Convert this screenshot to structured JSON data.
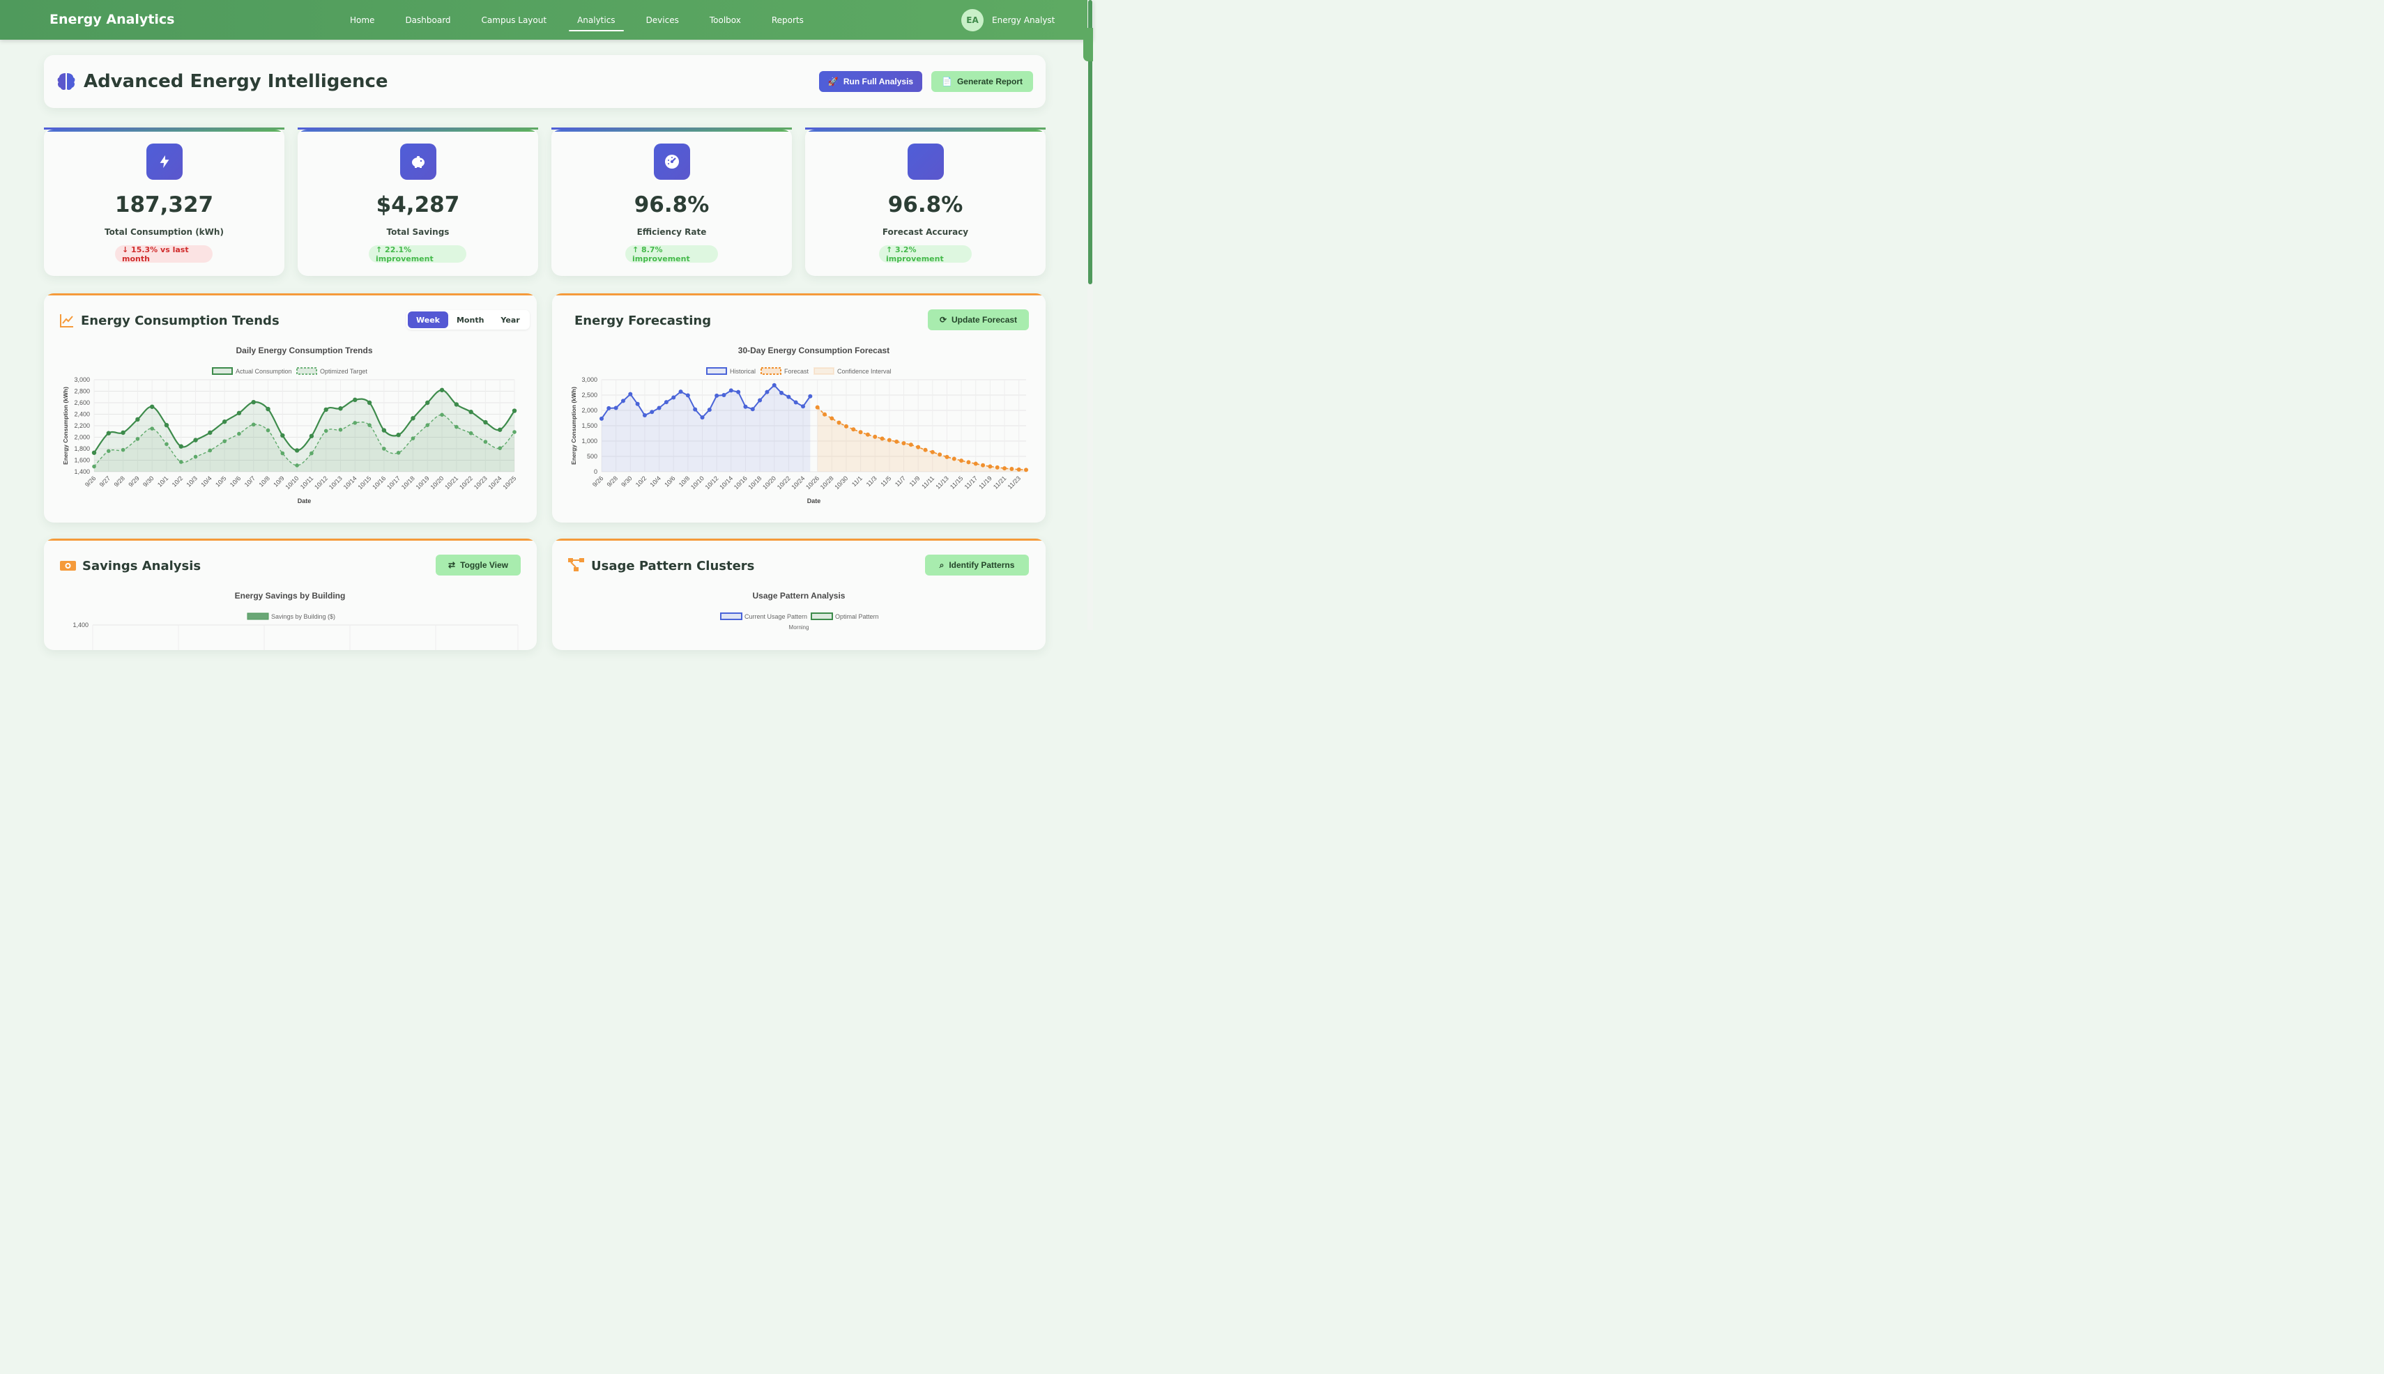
{
  "nav": {
    "brand": "Energy Analytics",
    "links": [
      "Home",
      "Dashboard",
      "Campus Layout",
      "Analytics",
      "Devices",
      "Toolbox",
      "Reports"
    ],
    "active": "Analytics",
    "user_initials": "EA",
    "user_name": "Energy Analyst"
  },
  "header": {
    "title": "Advanced Energy Intelligence",
    "run_label": "Run Full Analysis",
    "report_label": "Generate Report"
  },
  "stats": [
    {
      "icon": "bolt-icon",
      "value": "187,327",
      "label": "Total Consumption (kWh)",
      "badge": "↓ 15.3% vs last month",
      "trend": "down"
    },
    {
      "icon": "piggy-bank-icon",
      "value": "$4,287",
      "label": "Total Savings",
      "badge": "↑ 22.1% improvement",
      "trend": "up"
    },
    {
      "icon": "gauge-icon",
      "value": "96.8%",
      "label": "Efficiency Rate",
      "badge": "↑ 8.7% improvement",
      "trend": "up"
    },
    {
      "icon": "",
      "value": "96.8%",
      "label": "Forecast Accuracy",
      "badge": "↑ 3.2% improvement",
      "trend": "up"
    }
  ],
  "trends_card": {
    "title": "Energy Consumption Trends",
    "toggle": [
      "Week",
      "Month",
      "Year"
    ],
    "toggle_active": "Week"
  },
  "forecast_card": {
    "title": "Energy Forecasting",
    "button_label": "Update Forecast"
  },
  "savings_card": {
    "title": "Savings Analysis",
    "button_label": "Toggle View"
  },
  "patterns_card": {
    "title": "Usage Pattern Clusters",
    "button_label": "Identify Patterns"
  },
  "colors": {
    "nav": "#4f9a5c",
    "primary": "#4f5ed8",
    "accent_orange": "#f59a3a",
    "green_line": "#3d8b4b",
    "blue_line": "#4a64d8",
    "forecast_orange": "#f0902e"
  },
  "chart_data": [
    {
      "type": "line",
      "title": "Daily Energy Consumption Trends",
      "xlabel": "Date",
      "ylabel": "Energy Consumption (kWh)",
      "ylim": [
        1400,
        3000
      ],
      "yticks": [
        1400,
        1600,
        1800,
        2000,
        2200,
        2400,
        2600,
        2800,
        3000
      ],
      "grid": true,
      "legend": "top",
      "x": [
        "9/26",
        "9/27",
        "9/28",
        "9/29",
        "9/30",
        "10/1",
        "10/2",
        "10/3",
        "10/4",
        "10/5",
        "10/6",
        "10/7",
        "10/8",
        "10/9",
        "10/10",
        "10/11",
        "10/12",
        "10/13",
        "10/14",
        "10/15",
        "10/16",
        "10/17",
        "10/18",
        "10/19",
        "10/20",
        "10/21",
        "10/22",
        "10/23",
        "10/24",
        "10/25"
      ],
      "series": [
        {
          "name": "Actual Consumption",
          "values": [
            1730,
            2070,
            2080,
            2310,
            2530,
            2210,
            1840,
            1950,
            2080,
            2270,
            2420,
            2610,
            2490,
            2030,
            1770,
            2020,
            2480,
            2500,
            2650,
            2600,
            2120,
            2040,
            2330,
            2600,
            2820,
            2570,
            2440,
            2260,
            2130,
            2460
          ],
          "style": "solid"
        },
        {
          "name": "Optimized Target",
          "values": [
            1490,
            1760,
            1780,
            1970,
            2150,
            1880,
            1570,
            1660,
            1770,
            1930,
            2060,
            2220,
            2120,
            1720,
            1510,
            1720,
            2110,
            2130,
            2250,
            2210,
            1800,
            1730,
            1980,
            2210,
            2390,
            2180,
            2070,
            1920,
            1810,
            2090
          ],
          "style": "dashed"
        }
      ]
    },
    {
      "type": "line",
      "title": "30-Day Energy Consumption Forecast",
      "xlabel": "Date",
      "ylabel": "Energy Consumption (kWh)",
      "ylim": [
        0,
        3000
      ],
      "yticks": [
        0,
        500,
        1000,
        1500,
        2000,
        2500,
        3000
      ],
      "grid": true,
      "legend": "top",
      "x_ticks": [
        "9/26",
        "9/28",
        "9/30",
        "10/2",
        "10/4",
        "10/6",
        "10/8",
        "10/10",
        "10/12",
        "10/14",
        "10/16",
        "10/18",
        "10/20",
        "10/22",
        "10/24",
        "10/26",
        "10/28",
        "10/30",
        "11/1",
        "11/3",
        "11/5",
        "11/7",
        "11/9",
        "11/11",
        "11/13",
        "11/15",
        "11/17",
        "11/19",
        "11/21",
        "11/23"
      ],
      "series": [
        {
          "name": "Historical",
          "start_day": 0,
          "values": [
            1730,
            2070,
            2080,
            2310,
            2530,
            2210,
            1840,
            1950,
            2080,
            2270,
            2420,
            2610,
            2490,
            2030,
            1770,
            2020,
            2480,
            2500,
            2650,
            2600,
            2120,
            2040,
            2330,
            2600,
            2820,
            2570,
            2440,
            2260,
            2130,
            2460
          ]
        },
        {
          "name": "Forecast",
          "start_day": 30,
          "values": [
            2100,
            1870,
            1740,
            1600,
            1480,
            1380,
            1290,
            1210,
            1140,
            1080,
            1030,
            980,
            930,
            880,
            800,
            710,
            640,
            560,
            480,
            420,
            360,
            310,
            260,
            210,
            170,
            140,
            110,
            90,
            70,
            60
          ]
        },
        {
          "name": "Confidence Interval",
          "start_day": 30,
          "values": [
            2100,
            1870,
            1740,
            1600,
            1480,
            1380,
            1290,
            1210,
            1140,
            1080,
            1030,
            980,
            930,
            880,
            800,
            710,
            640,
            560,
            480,
            420,
            360,
            310,
            260,
            210,
            170,
            140,
            110,
            90,
            70,
            60
          ]
        }
      ]
    },
    {
      "type": "bar",
      "title": "Energy Savings by Building",
      "legend": "top",
      "yticks_visible": [
        1400
      ],
      "series": [
        {
          "name": "Savings by Building ($)",
          "values": []
        }
      ]
    },
    {
      "type": "radar",
      "title": "Usage Pattern Analysis",
      "legend": "top",
      "axis_labels_visible": [
        "Morning"
      ],
      "series": [
        {
          "name": "Current Usage Pattern",
          "values": []
        },
        {
          "name": "Optimal Pattern",
          "values": []
        }
      ]
    }
  ]
}
